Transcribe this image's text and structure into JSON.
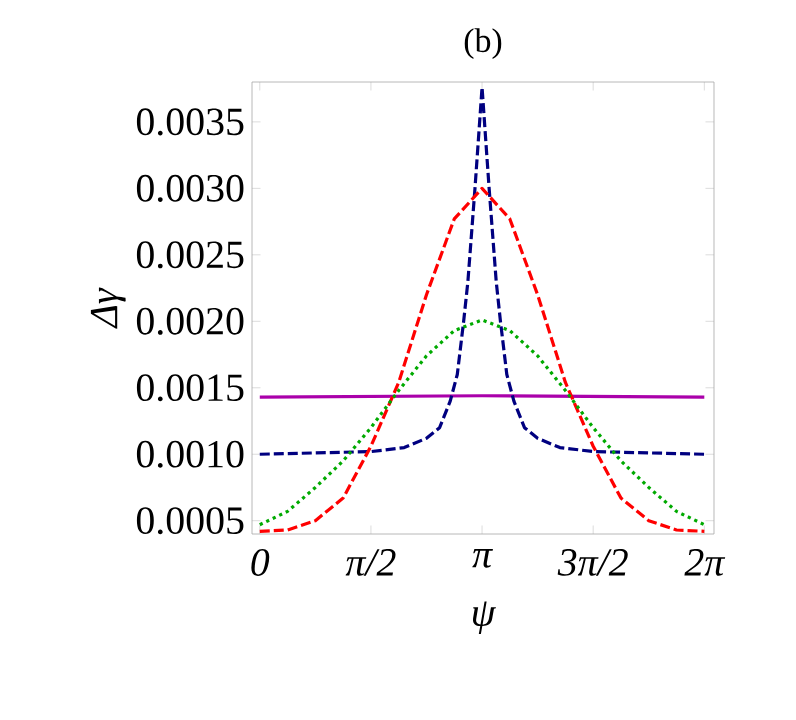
{
  "chart_data": {
    "type": "line",
    "title": "(b)",
    "xlabel": "ψ",
    "ylabel": "Δγ",
    "xlim": [
      -0.11,
      6.42
    ],
    "ylim": [
      0.0004,
      0.0038
    ],
    "xticks": [
      0,
      {
        "value": 1.5708,
        "label": "π/2"
      },
      {
        "value": 3.1416,
        "label": "π"
      },
      {
        "value": 4.7124,
        "label": "3π/2"
      },
      {
        "value": 6.2832,
        "label": "2π"
      }
    ],
    "yticks": [
      0.0005,
      {
        "value": 0.001,
        "label": "0.0010"
      },
      0.0015,
      {
        "value": 0.002,
        "label": "0.0020"
      },
      0.0025,
      {
        "value": 0.003,
        "label": "0.0030"
      },
      0.0035
    ],
    "grid": false,
    "marker": "none",
    "series": [
      {
        "color": "#aa00aa",
        "line_style": "solid",
        "x": [
          0,
          3.1416,
          6.2832
        ],
        "values": [
          0.00143,
          0.00144,
          0.00143
        ]
      },
      {
        "color": "#000080",
        "line_style": "dashed",
        "x": [
          0,
          0.7854,
          1.5708,
          2.0416,
          2.3562,
          2.5416,
          2.6916,
          2.7916,
          2.8816,
          2.9416,
          3.0416,
          3.1416,
          3.2416,
          3.3416,
          3.4016,
          3.4916,
          3.5916,
          3.7416,
          3.927,
          4.2416,
          4.7124,
          5.4978,
          6.2832
        ],
        "values": [
          0.001,
          0.00101,
          0.00102,
          0.00105,
          0.00112,
          0.0012,
          0.0014,
          0.0016,
          0.002,
          0.0023,
          0.003,
          0.00376,
          0.003,
          0.0023,
          0.002,
          0.0016,
          0.0014,
          0.0012,
          0.00112,
          0.00105,
          0.00102,
          0.00101,
          0.001
        ]
      },
      {
        "color": "#ff0000",
        "line_style": "dashed",
        "x": [
          0,
          0.3927,
          0.7854,
          1.1781,
          1.5708,
          1.9635,
          2.3562,
          2.7489,
          3.1416,
          3.5343,
          3.927,
          4.3197,
          4.7124,
          5.1051,
          5.4978,
          5.8905,
          6.2832
        ],
        "values": [
          0.00042,
          0.00043,
          0.0005,
          0.00067,
          0.00106,
          0.00154,
          0.0022,
          0.00277,
          0.003,
          0.00277,
          0.0022,
          0.00154,
          0.00106,
          0.00067,
          0.0005,
          0.00043,
          0.00042
        ]
      },
      {
        "color": "#00aa00",
        "line_style": "dotted",
        "x": [
          0,
          0.3927,
          0.7854,
          1.1781,
          1.5708,
          1.9635,
          2.3562,
          2.7489,
          3.1416,
          3.5343,
          3.927,
          4.3197,
          4.7124,
          5.1051,
          5.4978,
          5.8905,
          6.2832
        ],
        "values": [
          0.00047,
          0.00057,
          0.00075,
          0.00095,
          0.0012,
          0.00148,
          0.00174,
          0.00193,
          0.00201,
          0.00193,
          0.00174,
          0.00148,
          0.0012,
          0.00095,
          0.00075,
          0.00057,
          0.00047
        ]
      }
    ]
  }
}
